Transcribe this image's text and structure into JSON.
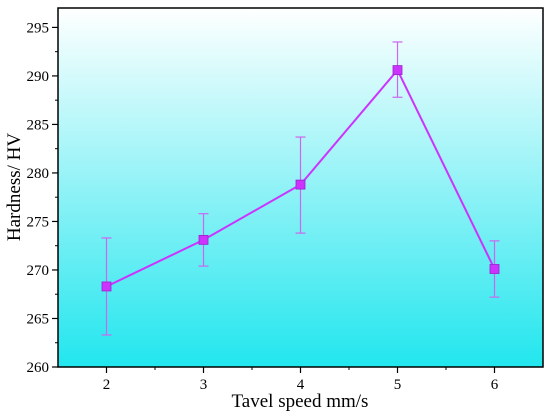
{
  "chart_data": {
    "type": "line",
    "title": "",
    "xlabel": "Tavel speed mm/s",
    "ylabel": "Hardness/ HV",
    "x": [
      2,
      3,
      4,
      5,
      6
    ],
    "xlim": [
      1.5,
      6.5
    ],
    "ylim": [
      260,
      297
    ],
    "xticks": [
      2,
      3,
      4,
      5,
      6
    ],
    "yticks": [
      260,
      265,
      270,
      275,
      280,
      285,
      290,
      295
    ],
    "grid": false,
    "legend": "none",
    "background": "gradient white (top) to cyan (bottom)",
    "series": [
      {
        "name": "",
        "color": "#cc33ff",
        "marker_color": "#cc33ff",
        "errorbar_color": "#cc66ee",
        "values": [
          268.3,
          273.1,
          278.8,
          290.6,
          270.1
        ],
        "error_low": [
          263.3,
          270.4,
          273.8,
          287.8,
          267.2
        ],
        "error_high": [
          273.3,
          275.8,
          283.7,
          293.5,
          273.0
        ]
      }
    ]
  },
  "colors": {
    "bg_top": "#ffffff",
    "bg_bottom": "#22e6ee"
  }
}
